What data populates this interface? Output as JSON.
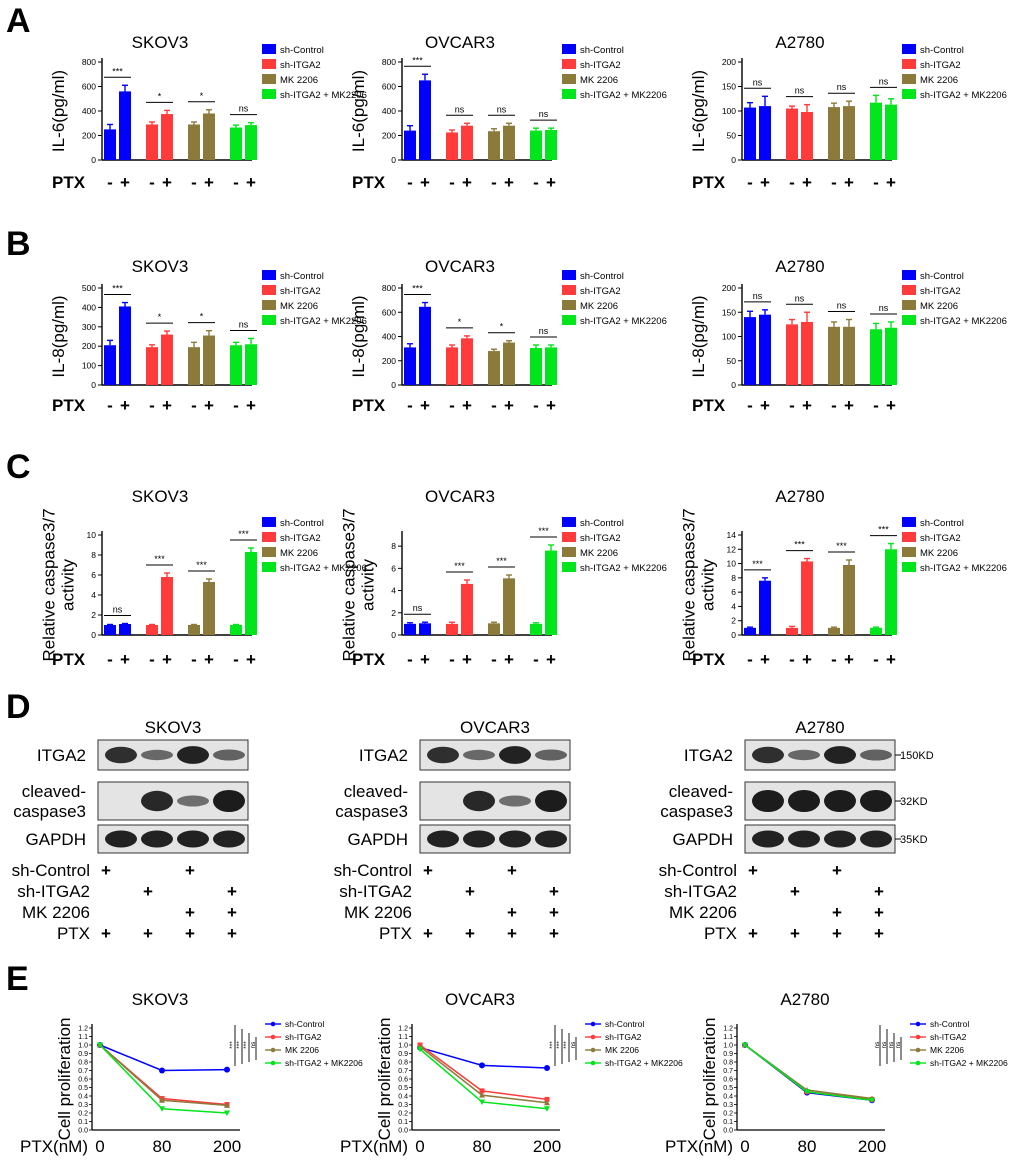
{
  "colors": {
    "sh-Control": "#0000ff",
    "sh-ITGA2": "#ff3b3b",
    "MK 2206": "#8c7a3a",
    "sh-ITGA2 + MK2206": "#00e51c",
    "axis": "#000000"
  },
  "labels": {
    "panel_A": "A",
    "panel_B": "B",
    "panel_C": "C",
    "panel_D": "D",
    "panel_E": "E",
    "ptx": "PTX",
    "ptx_nm": "PTX(nM)",
    "minus": "-",
    "plus": "+",
    "legend": [
      "sh-Control",
      "sh-ITGA2",
      "MK 2206",
      "sh-ITGA2 + MK2206"
    ],
    "legend_c_last_ovcar3": "sh-ITGA2 + MK2206"
  },
  "chart_data": [
    {
      "panel": "A",
      "type": "bar",
      "title": "SKOV3",
      "ylabel": "IL-6(pg/ml)",
      "ylim": [
        0,
        800
      ],
      "yticks": [
        0,
        200,
        400,
        600,
        800
      ],
      "series": [
        {
          "name": "sh-Control",
          "values": [
            250,
            560
          ],
          "errors": [
            40,
            50
          ]
        },
        {
          "name": "sh-ITGA2",
          "values": [
            290,
            375
          ],
          "errors": [
            20,
            30
          ]
        },
        {
          "name": "MK 2206",
          "values": [
            290,
            380
          ],
          "errors": [
            20,
            30
          ]
        },
        {
          "name": "sh-ITGA2 + MK2206",
          "values": [
            265,
            285
          ],
          "errors": [
            20,
            20
          ]
        }
      ],
      "significance": [
        "***",
        "*",
        "*",
        "ns"
      ]
    },
    {
      "panel": "A",
      "type": "bar",
      "title": "OVCAR3",
      "ylabel": "IL-6(pg/ml)",
      "ylim": [
        0,
        800
      ],
      "yticks": [
        0,
        200,
        400,
        600,
        800
      ],
      "series": [
        {
          "name": "sh-Control",
          "values": [
            240,
            650
          ],
          "errors": [
            40,
            50
          ]
        },
        {
          "name": "sh-ITGA2",
          "values": [
            225,
            280
          ],
          "errors": [
            20,
            20
          ]
        },
        {
          "name": "MK 2206",
          "values": [
            235,
            280
          ],
          "errors": [
            20,
            20
          ]
        },
        {
          "name": "sh-ITGA2 + MK2206",
          "values": [
            240,
            245
          ],
          "errors": [
            20,
            15
          ]
        }
      ],
      "significance": [
        "***",
        "ns",
        "ns",
        "ns"
      ]
    },
    {
      "panel": "A",
      "type": "bar",
      "title": "A2780",
      "ylabel": "IL-6(pg/ml)",
      "ylim": [
        0,
        200
      ],
      "yticks": [
        0,
        50,
        100,
        150,
        200
      ],
      "series": [
        {
          "name": "sh-Control",
          "values": [
            107,
            110
          ],
          "errors": [
            10,
            20
          ]
        },
        {
          "name": "sh-ITGA2",
          "values": [
            105,
            98
          ],
          "errors": [
            5,
            15
          ]
        },
        {
          "name": "MK 2206",
          "values": [
            108,
            110
          ],
          "errors": [
            8,
            10
          ]
        },
        {
          "name": "sh-ITGA2 + MK2206",
          "values": [
            117,
            113
          ],
          "errors": [
            15,
            12
          ]
        }
      ],
      "significance": [
        "ns",
        "ns",
        "ns",
        "ns"
      ]
    },
    {
      "panel": "B",
      "type": "bar",
      "title": "SKOV3",
      "ylabel": "IL-8(pg/ml)",
      "ylim": [
        0,
        500
      ],
      "yticks": [
        0,
        100,
        200,
        300,
        400,
        500
      ],
      "series": [
        {
          "name": "sh-Control",
          "values": [
            205,
            405
          ],
          "errors": [
            25,
            20
          ]
        },
        {
          "name": "sh-ITGA2",
          "values": [
            195,
            260
          ],
          "errors": [
            12,
            18
          ]
        },
        {
          "name": "MK 2206",
          "values": [
            195,
            255
          ],
          "errors": [
            25,
            25
          ]
        },
        {
          "name": "sh-ITGA2 + MK2206",
          "values": [
            205,
            210
          ],
          "errors": [
            15,
            30
          ]
        }
      ],
      "significance": [
        "***",
        "*",
        "*",
        "ns"
      ]
    },
    {
      "panel": "B",
      "type": "bar",
      "title": "OVCAR3",
      "ylabel": "IL-8(pg/ml)",
      "ylim": [
        0,
        800
      ],
      "yticks": [
        0,
        200,
        400,
        600,
        800
      ],
      "series": [
        {
          "name": "sh-Control",
          "values": [
            310,
            645
          ],
          "errors": [
            30,
            35
          ]
        },
        {
          "name": "sh-ITGA2",
          "values": [
            310,
            385
          ],
          "errors": [
            20,
            20
          ]
        },
        {
          "name": "MK 2206",
          "values": [
            280,
            350
          ],
          "errors": [
            15,
            15
          ]
        },
        {
          "name": "sh-ITGA2 + MK2206",
          "values": [
            305,
            310
          ],
          "errors": [
            25,
            20
          ]
        }
      ],
      "significance": [
        "***",
        "*",
        "*",
        "ns"
      ]
    },
    {
      "panel": "B",
      "type": "bar",
      "title": "A2780",
      "ylabel": "IL-8(pg/ml)",
      "ylim": [
        0,
        200
      ],
      "yticks": [
        0,
        50,
        100,
        150,
        200
      ],
      "series": [
        {
          "name": "sh-Control",
          "values": [
            140,
            145
          ],
          "errors": [
            12,
            10
          ]
        },
        {
          "name": "sh-ITGA2",
          "values": [
            125,
            130
          ],
          "errors": [
            10,
            20
          ]
        },
        {
          "name": "MK 2206",
          "values": [
            120,
            120
          ],
          "errors": [
            10,
            15
          ]
        },
        {
          "name": "sh-ITGA2 + MK2206",
          "values": [
            115,
            118
          ],
          "errors": [
            12,
            12
          ]
        }
      ],
      "significance": [
        "ns",
        "ns",
        "ns",
        "ns"
      ]
    },
    {
      "panel": "C",
      "type": "bar",
      "title": "SKOV3",
      "ylabel": "Relative caspase3/7\nactivity",
      "ylim": [
        0,
        10
      ],
      "yticks": [
        0,
        2,
        4,
        6,
        8,
        10
      ],
      "series": [
        {
          "name": "sh-Control",
          "values": [
            1.0,
            1.1
          ],
          "errors": [
            0.05,
            0.05
          ]
        },
        {
          "name": "sh-ITGA2",
          "values": [
            1.0,
            5.8
          ],
          "errors": [
            0.05,
            0.4
          ]
        },
        {
          "name": "MK 2206",
          "values": [
            1.0,
            5.3
          ],
          "errors": [
            0.05,
            0.3
          ]
        },
        {
          "name": "sh-ITGA2 + MK2206",
          "values": [
            1.0,
            8.3
          ],
          "errors": [
            0.05,
            0.4
          ]
        }
      ],
      "significance": [
        "ns",
        "***",
        "***",
        "***"
      ]
    },
    {
      "panel": "C",
      "type": "bar",
      "title": "OVCAR3",
      "ylabel": "Relative caspase3/7\nactivity",
      "ylim": [
        0,
        9
      ],
      "yticks": [
        0,
        2,
        4,
        6,
        8
      ],
      "series": [
        {
          "name": "sh-Control",
          "values": [
            1.0,
            1.05
          ],
          "errors": [
            0.1,
            0.1
          ]
        },
        {
          "name": "sh-ITGA2",
          "values": [
            1.0,
            4.6
          ],
          "errors": [
            0.15,
            0.35
          ]
        },
        {
          "name": "MK 2206",
          "values": [
            1.05,
            5.1
          ],
          "errors": [
            0.1,
            0.3
          ]
        },
        {
          "name": "sh-ITGA2 + MK2206",
          "values": [
            1.0,
            7.6
          ],
          "errors": [
            0.1,
            0.5
          ]
        }
      ],
      "significance": [
        "ns",
        "***",
        "***",
        "***"
      ]
    },
    {
      "panel": "C",
      "type": "bar",
      "title": "A2780",
      "ylabel": "Relative caspase3/7\nactivity",
      "ylim": [
        0,
        14
      ],
      "yticks": [
        0,
        2,
        4,
        6,
        8,
        10,
        12,
        14
      ],
      "series": [
        {
          "name": "sh-Control",
          "values": [
            1.0,
            7.6
          ],
          "errors": [
            0.1,
            0.4
          ]
        },
        {
          "name": "sh-ITGA2",
          "values": [
            1.0,
            10.3
          ],
          "errors": [
            0.2,
            0.4
          ]
        },
        {
          "name": "MK 2206",
          "values": [
            1.0,
            9.8
          ],
          "errors": [
            0.1,
            0.7
          ]
        },
        {
          "name": "sh-ITGA2 + MK2206",
          "values": [
            1.0,
            12.0
          ],
          "errors": [
            0.1,
            0.8
          ]
        }
      ],
      "significance": [
        "***",
        "***",
        "***",
        "***"
      ]
    },
    {
      "panel": "E",
      "type": "line",
      "title": "SKOV3",
      "ylabel": "Cell proliferation",
      "xlabel": "PTX(nM)",
      "x": [
        0,
        80,
        200
      ],
      "xticks": [
        "0",
        "80",
        "200"
      ],
      "ylim": [
        0,
        1.2
      ],
      "yticks": [
        0.0,
        0.1,
        0.2,
        0.3,
        0.4,
        0.5,
        0.6,
        0.7,
        0.8,
        0.9,
        1.0,
        1.1,
        1.2
      ],
      "series": [
        {
          "name": "sh-Control",
          "values": [
            1.0,
            0.7,
            0.71
          ],
          "marker": "circle"
        },
        {
          "name": "sh-ITGA2",
          "values": [
            1.0,
            0.37,
            0.3
          ],
          "marker": "square"
        },
        {
          "name": "MK 2206",
          "values": [
            1.0,
            0.35,
            0.29
          ],
          "marker": "triangle"
        },
        {
          "name": "sh-ITGA2 + MK2206",
          "values": [
            1.0,
            0.25,
            0.2
          ],
          "marker": "triangle-down"
        }
      ],
      "significance": [
        "***",
        "***",
        "***",
        "ns"
      ]
    },
    {
      "panel": "E",
      "type": "line",
      "title": "OVCAR3",
      "ylabel": "Cell proliferation",
      "xlabel": "PTX(nM)",
      "x": [
        0,
        80,
        200
      ],
      "xticks": [
        "0",
        "80",
        "200"
      ],
      "ylim": [
        0,
        1.2
      ],
      "yticks": [
        0.0,
        0.1,
        0.2,
        0.3,
        0.4,
        0.5,
        0.6,
        0.7,
        0.8,
        0.9,
        1.0,
        1.1,
        1.2
      ],
      "series": [
        {
          "name": "sh-Control",
          "values": [
            0.97,
            0.76,
            0.73
          ],
          "marker": "circle"
        },
        {
          "name": "sh-ITGA2",
          "values": [
            1.0,
            0.46,
            0.36
          ],
          "marker": "square"
        },
        {
          "name": "MK 2206",
          "values": [
            0.98,
            0.41,
            0.32
          ],
          "marker": "triangle"
        },
        {
          "name": "sh-ITGA2 + MK2206",
          "values": [
            0.95,
            0.33,
            0.25
          ],
          "marker": "triangle-down"
        }
      ],
      "significance": [
        "***",
        "***",
        "***",
        "ns"
      ]
    },
    {
      "panel": "E",
      "type": "line",
      "title": "A2780",
      "ylabel": "Cell proliferation",
      "xlabel": "PTX(nM)",
      "x": [
        0,
        80,
        200
      ],
      "xticks": [
        "0",
        "80",
        "200"
      ],
      "ylim": [
        0,
        1.2
      ],
      "yticks": [
        0.0,
        0.1,
        0.2,
        0.3,
        0.4,
        0.5,
        0.6,
        0.7,
        0.8,
        0.9,
        1.0,
        1.1,
        1.2
      ],
      "series": [
        {
          "name": "sh-Control",
          "values": [
            1.0,
            0.44,
            0.35
          ],
          "marker": "circle"
        },
        {
          "name": "sh-ITGA2",
          "values": [
            1.0,
            0.45,
            0.36
          ],
          "marker": "square"
        },
        {
          "name": "MK 2206",
          "values": [
            1.0,
            0.47,
            0.37
          ],
          "marker": "triangle"
        },
        {
          "name": "sh-ITGA2 + MK2206",
          "values": [
            1.0,
            0.45,
            0.35
          ],
          "marker": "triangle-down"
        }
      ],
      "significance": [
        "ns",
        "ns",
        "ns",
        "ns"
      ]
    }
  ],
  "blots": {
    "cells": [
      "SKOV3",
      "OVCAR3",
      "A2780"
    ],
    "rows": [
      {
        "label": "ITGA2",
        "size": "150KD",
        "intensities": [
          0.85,
          0.4,
          0.95,
          0.45
        ]
      },
      {
        "label": "cleaved-\ncaspase3",
        "size": "32KD",
        "intensities": [
          0.05,
          0.9,
          0.35,
          1.0
        ]
      },
      {
        "label": "GAPDH",
        "size": "35KD",
        "intensities": [
          0.95,
          0.95,
          0.95,
          0.95
        ]
      }
    ],
    "a2780_caspase": [
      1.0,
      1.0,
      1.0,
      1.0
    ],
    "conditions": [
      {
        "label": "sh-Control",
        "marks": [
          "+",
          "",
          "+",
          ""
        ]
      },
      {
        "label": "sh-ITGA2",
        "marks": [
          "",
          "+",
          "",
          "+"
        ]
      },
      {
        "label": "MK 2206",
        "marks": [
          "",
          "",
          "+",
          "+"
        ]
      },
      {
        "label": "PTX",
        "marks": [
          "+",
          "+",
          "+",
          "+"
        ]
      }
    ]
  }
}
